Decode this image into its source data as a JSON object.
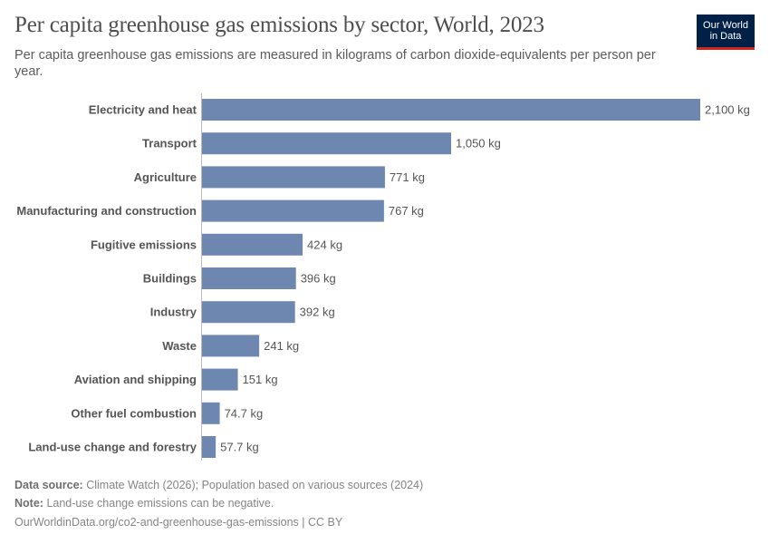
{
  "header": {
    "title": "Per capita greenhouse gas emissions by sector, World, 2023",
    "subtitle": "Per capita greenhouse gas emissions are measured in kilograms of carbon dioxide-equivalents per person per year.",
    "logo_text": [
      "Our World",
      "in Data"
    ]
  },
  "chart_data": {
    "type": "bar",
    "orientation": "horizontal",
    "title": "Per capita greenhouse gas emissions by sector, World, 2023",
    "unit": "kg",
    "categories": [
      "Electricity and heat",
      "Transport",
      "Agriculture",
      "Manufacturing and construction",
      "Fugitive emissions",
      "Buildings",
      "Industry",
      "Waste",
      "Aviation and shipping",
      "Other fuel combustion",
      "Land-use change and forestry"
    ],
    "values": [
      2100,
      1050,
      771,
      767,
      424,
      396,
      392,
      241,
      151,
      74.7,
      57.7
    ],
    "value_labels": [
      "2,100 kg",
      "1,050 kg",
      "771 kg",
      "767 kg",
      "424 kg",
      "396 kg",
      "392 kg",
      "241 kg",
      "151 kg",
      "74.7 kg",
      "57.7 kg"
    ],
    "xlim": [
      0,
      2100
    ],
    "grid": false,
    "bar_color": "#6d87b0"
  },
  "footer": {
    "source_label": "Data source:",
    "source_text": "Climate Watch (2026); Population based on various sources (2024)",
    "note_label": "Note:",
    "note_text": "Land-use change emissions can be negative.",
    "url": "OurWorldinData.org/co2-and-greenhouse-gas-emissions | CC BY"
  }
}
